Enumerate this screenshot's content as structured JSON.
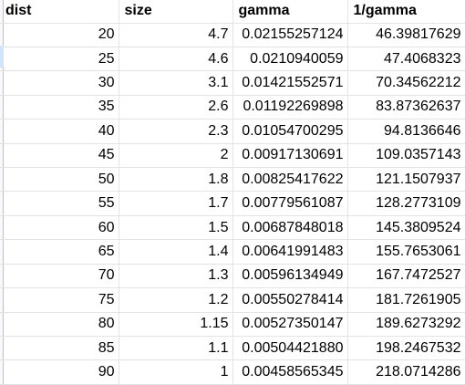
{
  "headers": [
    "dist",
    "size",
    "gamma",
    "1/gamma"
  ],
  "rows": [
    [
      "20",
      "4.7",
      "0.02155257124",
      "46.39817629"
    ],
    [
      "25",
      "4.6",
      "0.0210940059",
      "47.4068323"
    ],
    [
      "30",
      "3.1",
      "0.01421552571",
      "70.34562212"
    ],
    [
      "35",
      "2.6",
      "0.01192269898",
      "83.87362637"
    ],
    [
      "40",
      "2.3",
      "0.01054700295",
      "94.8136646"
    ],
    [
      "45",
      "2",
      "0.00917130691",
      "109.0357143"
    ],
    [
      "50",
      "1.8",
      "0.00825417622",
      "121.1507937"
    ],
    [
      "55",
      "1.7",
      "0.00779561087",
      "128.2773109"
    ],
    [
      "60",
      "1.5",
      "0.00687848018",
      "145.3809524"
    ],
    [
      "65",
      "1.4",
      "0.00641991483",
      "155.7653061"
    ],
    [
      "70",
      "1.3",
      "0.00596134949",
      "167.7472527"
    ],
    [
      "75",
      "1.2",
      "0.00550278414",
      "181.7261905"
    ],
    [
      "80",
      "1.15",
      "0.00527350147",
      "189.6273292"
    ],
    [
      "85",
      "1.1",
      "0.00504421880",
      "198.2467532"
    ],
    [
      "90",
      "1",
      "0.00458565345",
      "218.0714286"
    ]
  ]
}
